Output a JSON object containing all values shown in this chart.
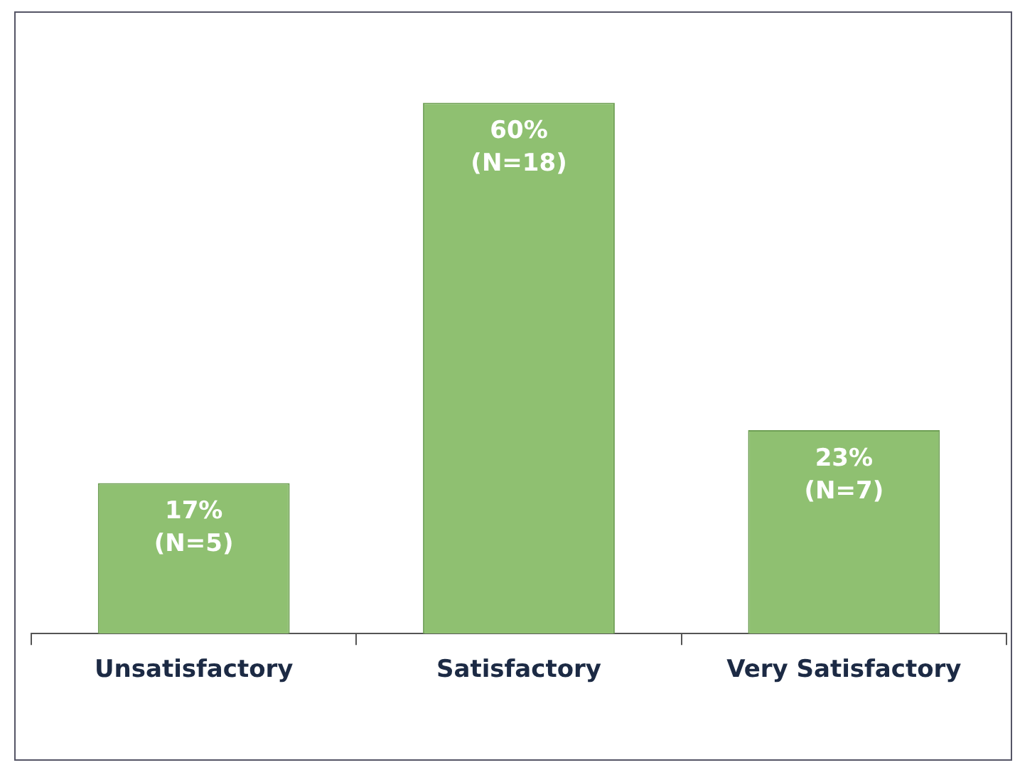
{
  "chart_data": {
    "type": "bar",
    "categories": [
      "Unsatisfactory",
      "Satisfactory",
      "Very Satisfactory"
    ],
    "values": [
      17,
      60,
      23
    ],
    "color": "#8fc071",
    "value_labels": [
      "17%\n(N=5)",
      "60%\n(N=18)",
      "23%\n(N=7)"
    ],
    "ylim": [
      0,
      70
    ],
    "grid": false,
    "legend": false
  }
}
